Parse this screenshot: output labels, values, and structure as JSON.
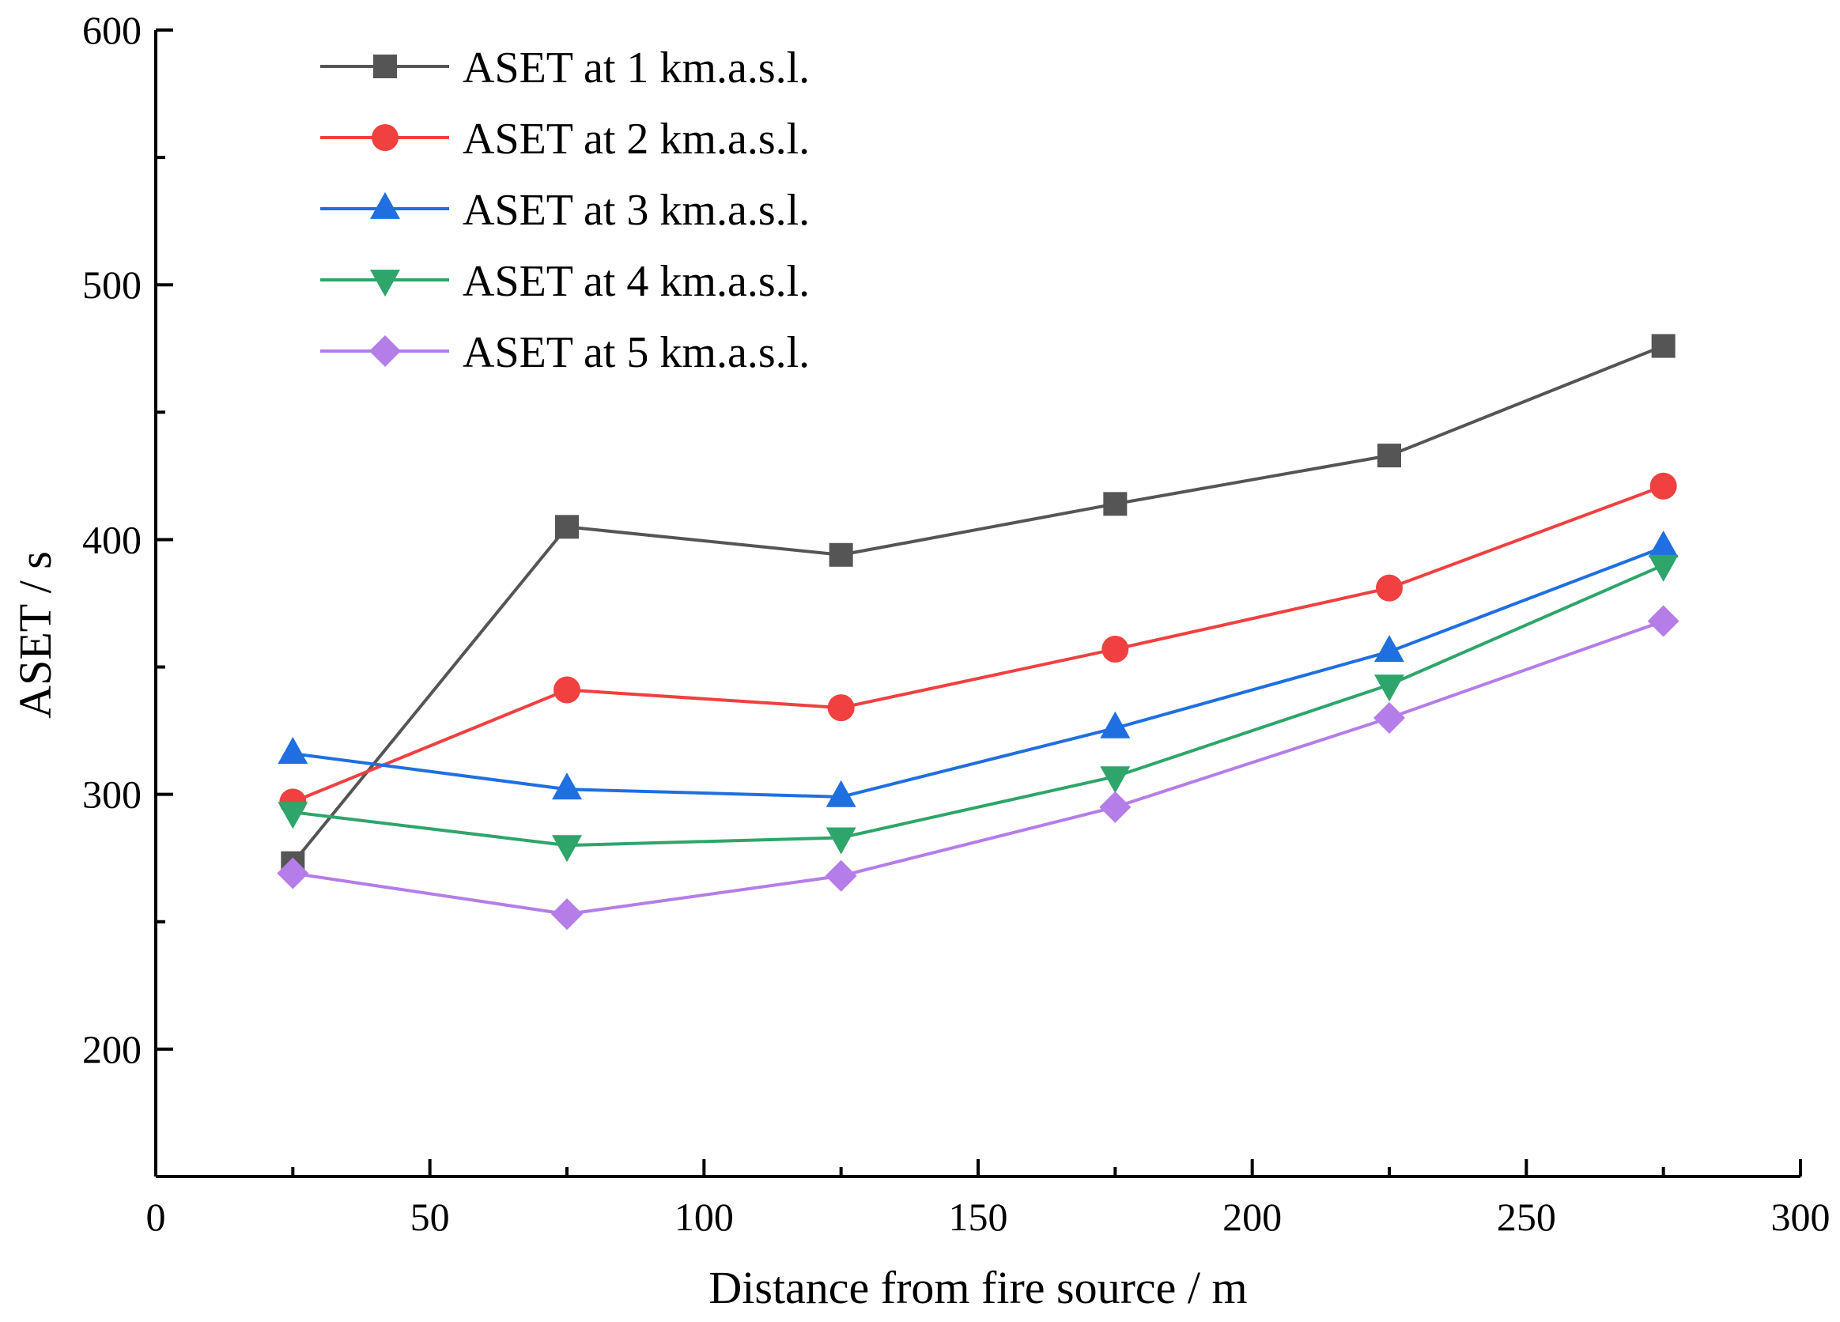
{
  "chart_data": {
    "type": "line",
    "title": "",
    "xlabel": "Distance from fire source / m",
    "ylabel": "ASET / s",
    "xlim": [
      0,
      300
    ],
    "ylim": [
      150,
      600
    ],
    "xticks": [
      0,
      50,
      100,
      150,
      200,
      250,
      300
    ],
    "yticks": [
      200,
      300,
      400,
      500,
      600
    ],
    "xtick_labels": [
      "0",
      "50",
      "100",
      "150",
      "200",
      "250",
      "300"
    ],
    "ytick_labels": [
      "200",
      "300",
      "400",
      "500",
      "600"
    ],
    "grid": false,
    "legend_position": "top-left",
    "x": [
      25,
      75,
      125,
      175,
      225,
      275
    ],
    "series": [
      {
        "name": "ASET at 1 km.a.s.l.",
        "color": "#555555",
        "marker": "square",
        "values": [
          273,
          405,
          394,
          414,
          433,
          476
        ]
      },
      {
        "name": "ASET at 2 km.a.s.l.",
        "color": "#f04040",
        "marker": "circle",
        "values": [
          297,
          341,
          334,
          357,
          381,
          421
        ]
      },
      {
        "name": "ASET at 3 km.a.s.l.",
        "color": "#1f6fe0",
        "marker": "triangle-up",
        "values": [
          316,
          302,
          299,
          326,
          356,
          397
        ]
      },
      {
        "name": "ASET at 4 km.a.s.l.",
        "color": "#2ea56a",
        "marker": "triangle-down",
        "values": [
          293,
          280,
          283,
          307,
          343,
          390
        ]
      },
      {
        "name": "ASET at 5 km.a.s.l.",
        "color": "#b57de8",
        "marker": "diamond",
        "values": [
          269,
          253,
          268,
          295,
          330,
          368
        ]
      }
    ]
  }
}
